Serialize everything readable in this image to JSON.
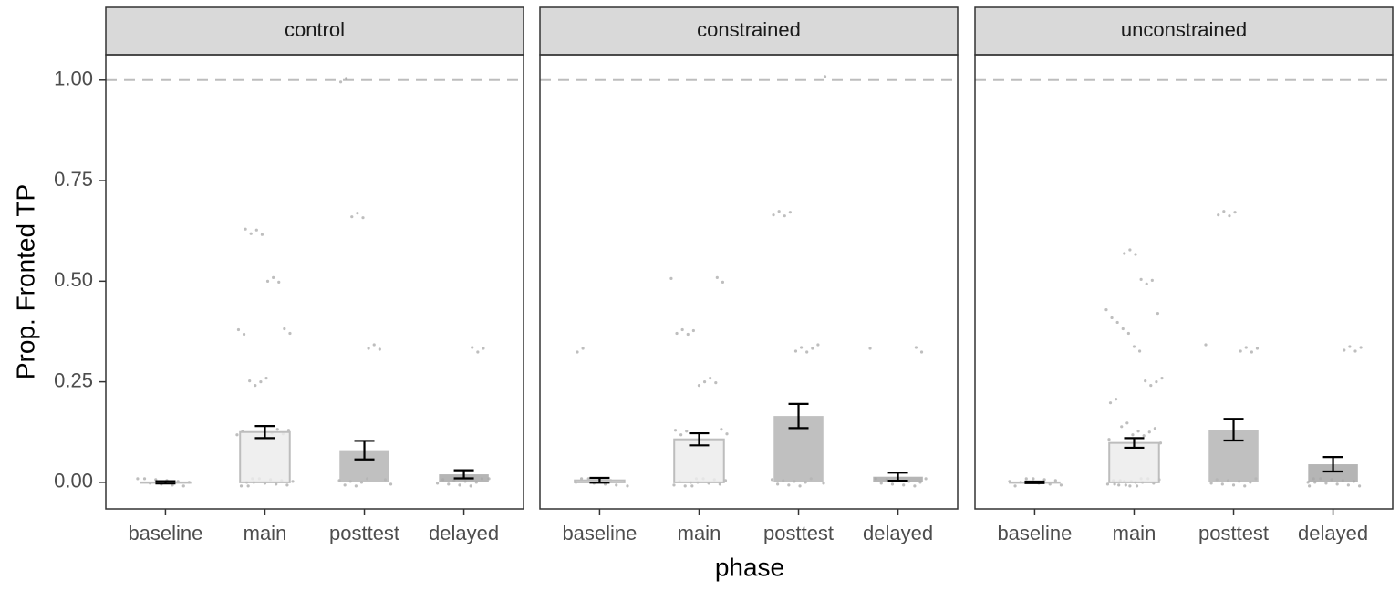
{
  "chart_data": {
    "type": "bar",
    "ylabel": "Prop. Fronted TP",
    "xlabel": "phase",
    "ylim": [
      -0.066,
      1.063
    ],
    "yticks": [
      {
        "value": 0,
        "label": "0.00"
      },
      {
        "value": 0.25,
        "label": "0.25"
      },
      {
        "value": 0.5,
        "label": "0.50"
      },
      {
        "value": 0.75,
        "label": "0.75"
      },
      {
        "value": 1,
        "label": "1.00"
      }
    ],
    "hline": 1,
    "categories": [
      "baseline",
      "main",
      "posttest",
      "delayed"
    ],
    "colors": [
      "#ececec",
      "#ececec",
      "#b5b5b5",
      "#a8a8a8"
    ],
    "panels": [
      {
        "title": "control",
        "values": [
          0.0,
          0.125,
          0.08,
          0.02
        ],
        "errors": [
          0.003,
          0.015,
          0.023,
          0.01
        ],
        "points": [
          [
            0,
            0,
            0,
            0,
            0,
            0,
            0,
            0,
            0,
            0
          ],
          [
            0,
            0,
            0,
            0,
            0,
            0,
            0,
            0,
            0,
            0,
            0,
            0,
            0.125,
            0.125,
            0.125,
            0.125,
            0.125,
            0.125,
            0.25,
            0.25,
            0.25,
            0.25,
            0.375,
            0.375,
            0.375,
            0.375,
            0.5,
            0.5,
            0.5,
            0.625,
            0.625,
            0.625,
            0.625
          ],
          [
            0,
            0,
            0,
            0,
            0,
            0,
            0,
            0,
            0.333,
            0.333,
            0.333,
            0.667,
            0.667,
            0.667,
            1,
            1
          ],
          [
            0,
            0,
            0,
            0,
            0,
            0,
            0,
            0,
            0,
            0,
            0.333,
            0.333,
            0.333
          ]
        ]
      },
      {
        "title": "constrained",
        "values": [
          0.005,
          0.107,
          0.165,
          0.014
        ],
        "errors": [
          0.006,
          0.015,
          0.03,
          0.01
        ],
        "points": [
          [
            0,
            0,
            0,
            0,
            0,
            0,
            0,
            0,
            0,
            0,
            0.333,
            0.333
          ],
          [
            0,
            0,
            0,
            0,
            0,
            0,
            0,
            0,
            0,
            0,
            0,
            0,
            0.125,
            0.125,
            0.125,
            0.125,
            0.125,
            0.25,
            0.25,
            0.25,
            0.25,
            0.375,
            0.375,
            0.375,
            0.375,
            0.5,
            0.5,
            0.5
          ],
          [
            0,
            0,
            0,
            0,
            0,
            0,
            0,
            0,
            0,
            0.333,
            0.333,
            0.333,
            0.333,
            0.333,
            0.667,
            0.667,
            0.667,
            0.667,
            1
          ],
          [
            0,
            0,
            0,
            0,
            0,
            0,
            0,
            0,
            0,
            0,
            0.333,
            0.333,
            0.333
          ]
        ]
      },
      {
        "title": "unconstrained",
        "values": [
          0.0,
          0.098,
          0.131,
          0.045
        ],
        "errors": [
          0.002,
          0.012,
          0.027,
          0.018
        ],
        "points": [
          [
            0,
            0,
            0,
            0,
            0,
            0,
            0,
            0,
            0,
            0
          ],
          [
            0,
            0,
            0,
            0,
            0,
            0,
            0,
            0,
            0,
            0,
            0,
            0,
            0,
            0,
            0,
            0,
            0.1,
            0.1,
            0.125,
            0.125,
            0.125,
            0.125,
            0.125,
            0.143,
            0.143,
            0.2,
            0.2,
            0.25,
            0.25,
            0.25,
            0.25,
            0.333,
            0.333,
            0.375,
            0.375,
            0.4,
            0.4,
            0.429,
            0.429,
            0.5,
            0.5,
            0.5,
            0.571,
            0.571,
            0.571
          ],
          [
            0,
            0,
            0,
            0,
            0,
            0,
            0,
            0,
            0,
            0.333,
            0.333,
            0.333,
            0.333,
            0.333,
            0.667,
            0.667,
            0.667,
            0.667
          ],
          [
            0,
            0,
            0,
            0,
            0,
            0,
            0,
            0,
            0,
            0,
            0,
            0,
            0.333,
            0.333,
            0.333,
            0.333
          ]
        ]
      }
    ]
  }
}
